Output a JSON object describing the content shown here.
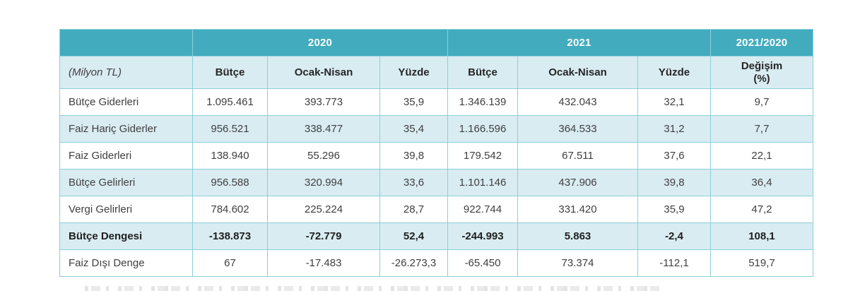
{
  "chart_data": {
    "type": "table",
    "unit_label": "(Milyon TL)",
    "column_groups": [
      {
        "label": "2020",
        "span": 3
      },
      {
        "label": "2021",
        "span": 3
      },
      {
        "label": "2021/2020",
        "span": 1
      }
    ],
    "columns": [
      "Bütçe",
      "Ocak-Nisan",
      "Yüzde",
      "Bütçe",
      "Ocak-Nisan",
      "Yüzde",
      "Değişim\n(%)"
    ],
    "rows": [
      {
        "label": "Bütçe Giderleri",
        "values": [
          "1.095.461",
          "393.773",
          "35,9",
          "1.346.139",
          "432.043",
          "32,1",
          "9,7"
        ],
        "bold": false
      },
      {
        "label": "Faiz Hariç Giderler",
        "values": [
          "956.521",
          "338.477",
          "35,4",
          "1.166.596",
          "364.533",
          "31,2",
          "7,7"
        ],
        "bold": false
      },
      {
        "label": "Faiz Giderleri",
        "values": [
          "138.940",
          "55.296",
          "39,8",
          "179.542",
          "67.511",
          "37,6",
          "22,1"
        ],
        "bold": false
      },
      {
        "label": "Bütçe Gelirleri",
        "values": [
          "956.588",
          "320.994",
          "33,6",
          "1.101.146",
          "437.906",
          "39,8",
          "36,4"
        ],
        "bold": false
      },
      {
        "label": "Vergi Gelirleri",
        "values": [
          "784.602",
          "225.224",
          "28,7",
          "922.744",
          "331.420",
          "35,9",
          "47,2"
        ],
        "bold": false
      },
      {
        "label": "Bütçe Dengesi",
        "values": [
          "-138.873",
          "-72.779",
          "52,4",
          "-244.993",
          "5.863",
          "-2,4",
          "108,1"
        ],
        "bold": true
      },
      {
        "label": "Faiz Dışı Denge",
        "values": [
          "67",
          "-17.483",
          "-26.273,3",
          "-65.450",
          "73.374",
          "-112,1",
          "519,7"
        ],
        "bold": false
      }
    ]
  },
  "colors": {
    "header_teal": "#42acbe",
    "light_blue_band": "#d9ecf2",
    "cell_border": "#8ccfda",
    "data_text": "#3f3f3f",
    "header_text": "#ffffff"
  }
}
